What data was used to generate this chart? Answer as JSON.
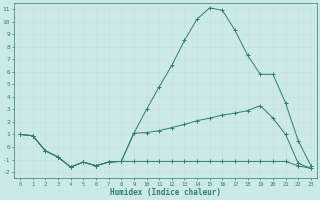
{
  "xlabel": "Humidex (Indice chaleur)",
  "background_color": "#cce9e9",
  "line_color": "#2e7d6e",
  "xlim": [
    -0.5,
    23.5
  ],
  "ylim": [
    -2.5,
    11.5
  ],
  "xticks": [
    0,
    1,
    2,
    3,
    4,
    5,
    6,
    7,
    8,
    9,
    10,
    11,
    12,
    13,
    14,
    15,
    16,
    17,
    18,
    19,
    20,
    21,
    22,
    23
  ],
  "yticks": [
    -2,
    -1,
    0,
    1,
    2,
    3,
    4,
    5,
    6,
    7,
    8,
    9,
    10,
    11
  ],
  "line1_x": [
    0,
    1,
    2,
    3,
    4,
    5,
    6,
    7,
    8,
    9,
    10,
    11,
    12,
    13,
    14,
    15,
    16,
    17,
    18,
    19,
    20,
    21,
    22,
    23
  ],
  "line1_y": [
    1.0,
    0.9,
    -0.3,
    -0.8,
    -1.6,
    -1.2,
    -1.5,
    -1.2,
    -1.15,
    1.1,
    3.0,
    4.8,
    6.5,
    8.5,
    10.2,
    11.1,
    10.9,
    9.3,
    7.3,
    5.8,
    5.8,
    3.5,
    0.5,
    -1.5
  ],
  "line2_x": [
    0,
    1,
    2,
    3,
    4,
    5,
    6,
    7,
    8,
    9,
    10,
    11,
    12,
    13,
    14,
    15,
    16,
    17,
    18,
    19,
    20,
    21,
    22,
    23
  ],
  "line2_y": [
    1.0,
    0.9,
    -0.3,
    -0.8,
    -1.6,
    -1.2,
    -1.5,
    -1.2,
    -1.15,
    1.1,
    1.15,
    1.3,
    1.55,
    1.8,
    2.1,
    2.3,
    2.55,
    2.7,
    2.9,
    3.3,
    2.3,
    1.0,
    -1.3,
    -1.7
  ],
  "line3_x": [
    0,
    1,
    2,
    3,
    4,
    5,
    6,
    7,
    8,
    9,
    10,
    11,
    12,
    13,
    14,
    15,
    16,
    17,
    18,
    19,
    20,
    21,
    22,
    23
  ],
  "line3_y": [
    1.0,
    0.9,
    -0.3,
    -0.8,
    -1.6,
    -1.2,
    -1.5,
    -1.2,
    -1.15,
    -1.15,
    -1.15,
    -1.15,
    -1.15,
    -1.15,
    -1.15,
    -1.15,
    -1.15,
    -1.15,
    -1.15,
    -1.15,
    -1.15,
    -1.15,
    -1.5,
    -1.7
  ],
  "grid_color": "#b8d8d4",
  "font_color": "#2e7d6e",
  "grid_major_color": "#c8dede"
}
